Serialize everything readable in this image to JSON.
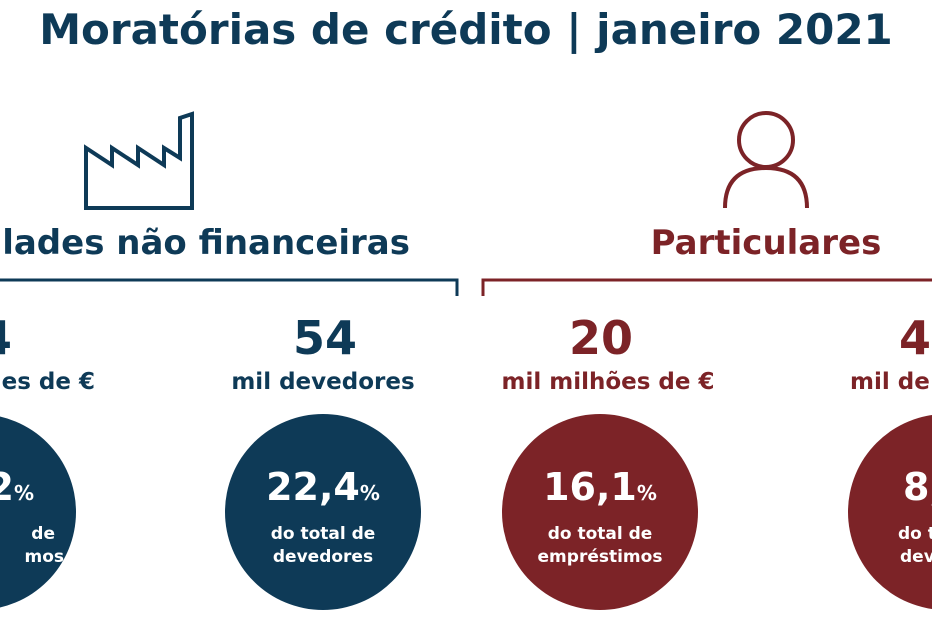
{
  "header": {
    "title": "Moratórias de crédito | janeiro 2021"
  },
  "sections": [
    {
      "title": "lades não financeiras",
      "stats": [
        {
          "value": "4",
          "label": "es de €",
          "circle": {
            "value": "2",
            "unit": "%",
            "lines": [
              "de",
              "mos"
            ]
          }
        },
        {
          "value": "54",
          "label": "mil devedores",
          "circle": {
            "value": "22,4",
            "unit": "%",
            "lines": [
              "do total de",
              "devedores"
            ]
          }
        }
      ]
    },
    {
      "title": "Particulares",
      "stats": [
        {
          "value": "20",
          "label": "mil milhões de €",
          "circle": {
            "value": "16,1",
            "unit": "%",
            "lines": [
              "do total de",
              "empréstimos"
            ]
          }
        },
        {
          "value": "4",
          "label": "mil de",
          "circle": {
            "value": "8,",
            "lines": [
              "do to",
              "dev"
            ]
          }
        }
      ]
    }
  ]
}
